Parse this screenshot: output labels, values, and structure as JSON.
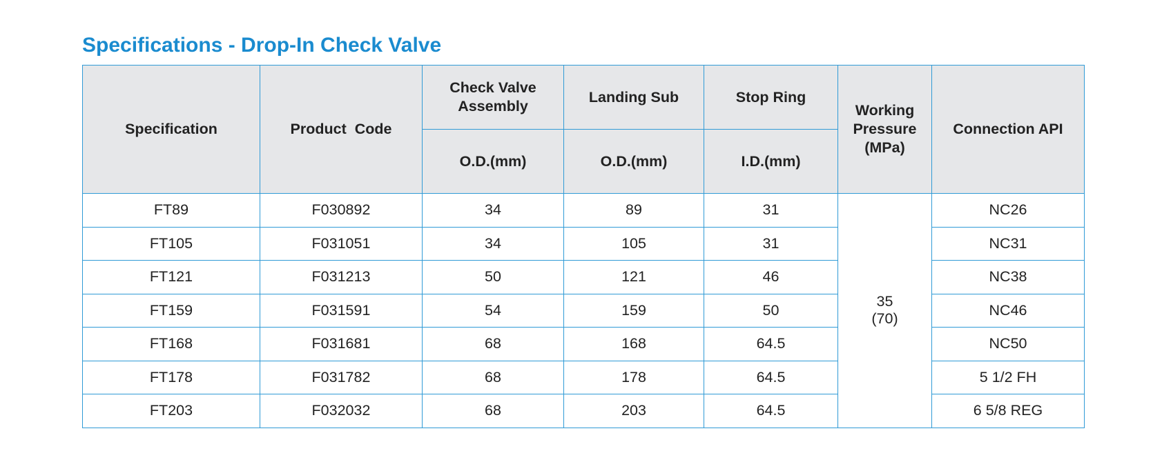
{
  "title": "Specifications - Drop-In Check Valve",
  "headers": {
    "specification": "Specification",
    "product_code": "Product  Code",
    "check_valve_assembly": [
      "Check Valve",
      "Assembly"
    ],
    "landing_sub": "Landing Sub",
    "stop_ring": "Stop Ring",
    "working_pressure": [
      "Working",
      "Pressure",
      "(MPa)"
    ],
    "connection_api": "Connection API",
    "check_valve_od": "O.D.(mm)",
    "landing_sub_od": "O.D.(mm)",
    "stop_ring_id": "I.D.(mm)"
  },
  "working_pressure_value": [
    "35",
    "(70)"
  ],
  "rows": [
    {
      "spec": "FT89",
      "code": "F030892",
      "cva_od": "34",
      "ls_od": "89",
      "sr_id": "31",
      "api": "NC26"
    },
    {
      "spec": "FT105",
      "code": "F031051",
      "cva_od": "34",
      "ls_od": "105",
      "sr_id": "31",
      "api": "NC31"
    },
    {
      "spec": "FT121",
      "code": "F031213",
      "cva_od": "50",
      "ls_od": "121",
      "sr_id": "46",
      "api": "NC38"
    },
    {
      "spec": "FT159",
      "code": "F031591",
      "cva_od": "54",
      "ls_od": "159",
      "sr_id": "50",
      "api": "NC46"
    },
    {
      "spec": "FT168",
      "code": "F031681",
      "cva_od": "68",
      "ls_od": "168",
      "sr_id": "64.5",
      "api": "NC50"
    },
    {
      "spec": "FT178",
      "code": "F031782",
      "cva_od": "68",
      "ls_od": "178",
      "sr_id": "64.5",
      "api": "5 1/2 FH"
    },
    {
      "spec": "FT203",
      "code": "F032032",
      "cva_od": "68",
      "ls_od": "203",
      "sr_id": "64.5",
      "api": "6 5/8 REG"
    }
  ]
}
